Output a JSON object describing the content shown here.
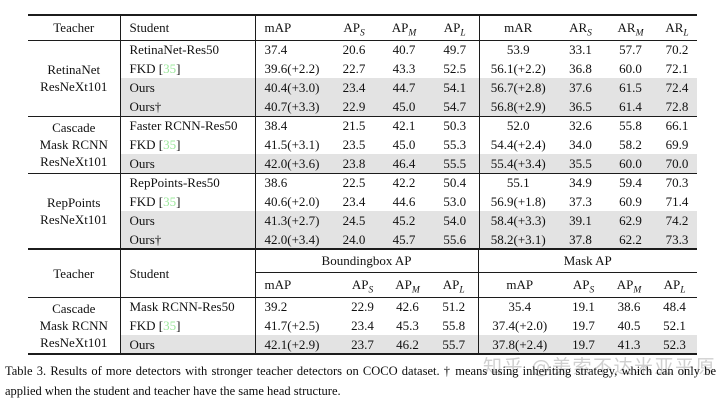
{
  "colors": {
    "row_highlight": "#e3e3e3",
    "citation_green": "#9ce89c",
    "rule": "#1c1c1c",
    "watermark_gray": "#d0d0d0"
  },
  "table1": {
    "header": {
      "teacher": "Teacher",
      "student": "Student",
      "cols": [
        {
          "b": "mAP",
          "s": ""
        },
        {
          "b": "AP",
          "s": "S"
        },
        {
          "b": "AP",
          "s": "M"
        },
        {
          "b": "AP",
          "s": "L"
        },
        {
          "b": "mAR",
          "s": ""
        },
        {
          "b": "AR",
          "s": "S"
        },
        {
          "b": "AR",
          "s": "M"
        },
        {
          "b": "AR",
          "s": "L"
        }
      ]
    },
    "blocks": [
      {
        "teacher_lines": [
          "RetinaNet",
          "ResNeXt101"
        ],
        "rows": [
          {
            "student": "RetinaNet-Res50",
            "cite": null,
            "highlight": false,
            "values": [
              "37.4",
              "20.6",
              "40.7",
              "49.7",
              "53.9",
              "33.1",
              "57.7",
              "70.2"
            ]
          },
          {
            "student": "FKD",
            "cite": "35",
            "highlight": false,
            "values": [
              "39.6(+2.2)",
              "22.7",
              "43.3",
              "52.5",
              "56.1(+2.2)",
              "36.8",
              "60.0",
              "72.1"
            ]
          },
          {
            "student": "Ours",
            "cite": null,
            "highlight": true,
            "values": [
              "40.4(+3.0)",
              "23.4",
              "44.7",
              "54.1",
              "56.7(+2.8)",
              "37.6",
              "61.5",
              "72.4"
            ]
          },
          {
            "student": "Ours†",
            "cite": null,
            "highlight": true,
            "values": [
              "40.7(+3.3)",
              "22.9",
              "45.0",
              "54.7",
              "56.8(+2.9)",
              "36.5",
              "61.4",
              "72.8"
            ]
          }
        ]
      },
      {
        "teacher_lines": [
          "Cascade",
          "Mask RCNN",
          "ResNeXt101"
        ],
        "rows": [
          {
            "student": "Faster RCNN-Res50",
            "cite": null,
            "highlight": false,
            "values": [
              "38.4",
              "21.5",
              "42.1",
              "50.3",
              "52.0",
              "32.6",
              "55.8",
              "66.1"
            ]
          },
          {
            "student": "FKD",
            "cite": "35",
            "highlight": false,
            "values": [
              "41.5(+3.1)",
              "23.5",
              "45.0",
              "55.3",
              "54.4(+2.4)",
              "34.0",
              "58.2",
              "69.9"
            ]
          },
          {
            "student": "Ours",
            "cite": null,
            "highlight": true,
            "values": [
              "42.0(+3.6)",
              "23.8",
              "46.4",
              "55.5",
              "55.4(+3.4)",
              "35.5",
              "60.0",
              "70.0"
            ]
          }
        ]
      },
      {
        "teacher_lines": [
          "RepPoints",
          "ResNeXt101"
        ],
        "rows": [
          {
            "student": "RepPoints-Res50",
            "cite": null,
            "highlight": false,
            "values": [
              "38.6",
              "22.5",
              "42.2",
              "50.4",
              "55.1",
              "34.9",
              "59.4",
              "70.3"
            ]
          },
          {
            "student": "FKD",
            "cite": "35",
            "highlight": false,
            "values": [
              "40.6(+2.0)",
              "23.4",
              "44.6",
              "53.0",
              "56.9(+1.8)",
              "37.3",
              "60.9",
              "71.4"
            ]
          },
          {
            "student": "Ours",
            "cite": null,
            "highlight": true,
            "values": [
              "41.3(+2.7)",
              "24.5",
              "45.2",
              "54.0",
              "58.4(+3.3)",
              "39.1",
              "62.9",
              "74.2"
            ]
          },
          {
            "student": "Ours†",
            "cite": null,
            "highlight": true,
            "values": [
              "42.0(+3.4)",
              "24.0",
              "45.7",
              "55.6",
              "58.2(+3.1)",
              "37.8",
              "62.2",
              "73.3"
            ]
          }
        ]
      }
    ]
  },
  "table2": {
    "header": {
      "teacher": "Teacher",
      "student": "Student",
      "groups": [
        {
          "label": "Boundingbox AP"
        },
        {
          "label": "Mask AP"
        }
      ],
      "cols": [
        {
          "b": "mAP",
          "s": ""
        },
        {
          "b": "AP",
          "s": "S"
        },
        {
          "b": "AP",
          "s": "M"
        },
        {
          "b": "AP",
          "s": "L"
        },
        {
          "b": "mAP",
          "s": ""
        },
        {
          "b": "AP",
          "s": "S"
        },
        {
          "b": "AP",
          "s": "M"
        },
        {
          "b": "AP",
          "s": "L"
        }
      ]
    },
    "blocks": [
      {
        "teacher_lines": [
          "Cascade",
          "Mask RCNN",
          "ResNeXt101"
        ],
        "rows": [
          {
            "student": "Mask RCNN-Res50",
            "cite": null,
            "highlight": false,
            "values": [
              "39.2",
              "22.9",
              "42.6",
              "51.2",
              "35.4",
              "19.1",
              "38.6",
              "48.4"
            ]
          },
          {
            "student": "FKD",
            "cite": "35",
            "highlight": false,
            "values": [
              "41.7(+2.5)",
              "23.4",
              "45.3",
              "55.8",
              "37.4(+2.0)",
              "19.7",
              "40.5",
              "52.1"
            ]
          },
          {
            "student": "Ours",
            "cite": null,
            "highlight": true,
            "values": [
              "42.1(+2.9)",
              "23.7",
              "46.2",
              "55.7",
              "37.8(+2.4)",
              "19.7",
              "41.3",
              "52.3"
            ]
          }
        ]
      }
    ]
  },
  "caption": {
    "lines": [
      "Table 3. Results of more detectors with stronger teacher detectors on COCO dataset. † means using inheriting strategy, which can only be",
      "applied when the student and teacher have the same head structure."
    ]
  },
  "watermark": {
    "text": "知乎 @美索不达米亚平原"
  }
}
